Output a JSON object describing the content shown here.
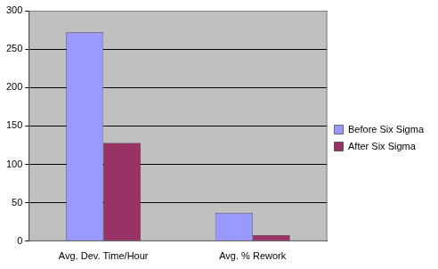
{
  "chart_data": {
    "type": "bar",
    "categories": [
      "Avg. Dev. Time/Hour",
      "Avg. % Rework"
    ],
    "series": [
      {
        "name": "Before Six Sigma",
        "color": "#9999ff",
        "values": [
          272,
          37
        ]
      },
      {
        "name": "After Six Sigma",
        "color": "#993366",
        "values": [
          128,
          8
        ]
      }
    ],
    "ylim": [
      0,
      300
    ],
    "yticks": [
      0,
      50,
      100,
      150,
      200,
      250,
      300
    ],
    "grid": true,
    "legend": "right"
  }
}
